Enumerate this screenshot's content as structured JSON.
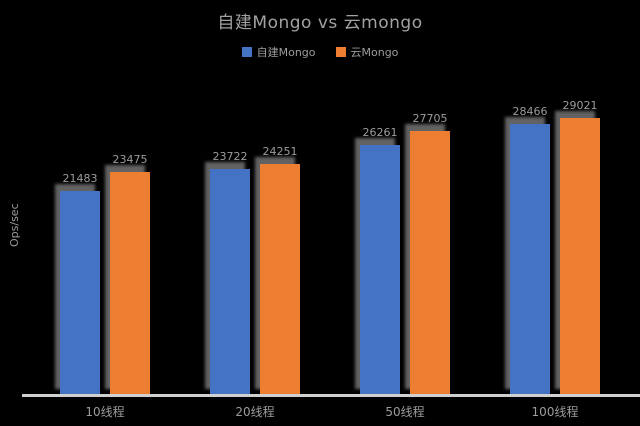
{
  "title": "自建Mongo vs 云mongo",
  "ylabel": "Ops/sec",
  "chart_data": {
    "type": "bar",
    "title": "自建Mongo vs 云mongo",
    "categories": [
      "10线程",
      "20线程",
      "50线程",
      "100线程"
    ],
    "series": [
      {
        "name": "自建Mongo",
        "color": "#4472c4",
        "values": [
          21483,
          23722,
          26261,
          28466
        ]
      },
      {
        "name": "云Mongo",
        "color": "#ed7d31",
        "values": [
          23475,
          24251,
          27705,
          29021
        ]
      }
    ],
    "ylabel": "Ops/sec",
    "ylim": [
      0,
      32000
    ],
    "grid": false,
    "legend_position": "top",
    "data_labels": true
  },
  "colors": {
    "background": "#000000",
    "text": "#9c9c9c",
    "axis_line": "#cfcfcf",
    "series1": "#4472c4",
    "series2": "#ed7d31"
  }
}
